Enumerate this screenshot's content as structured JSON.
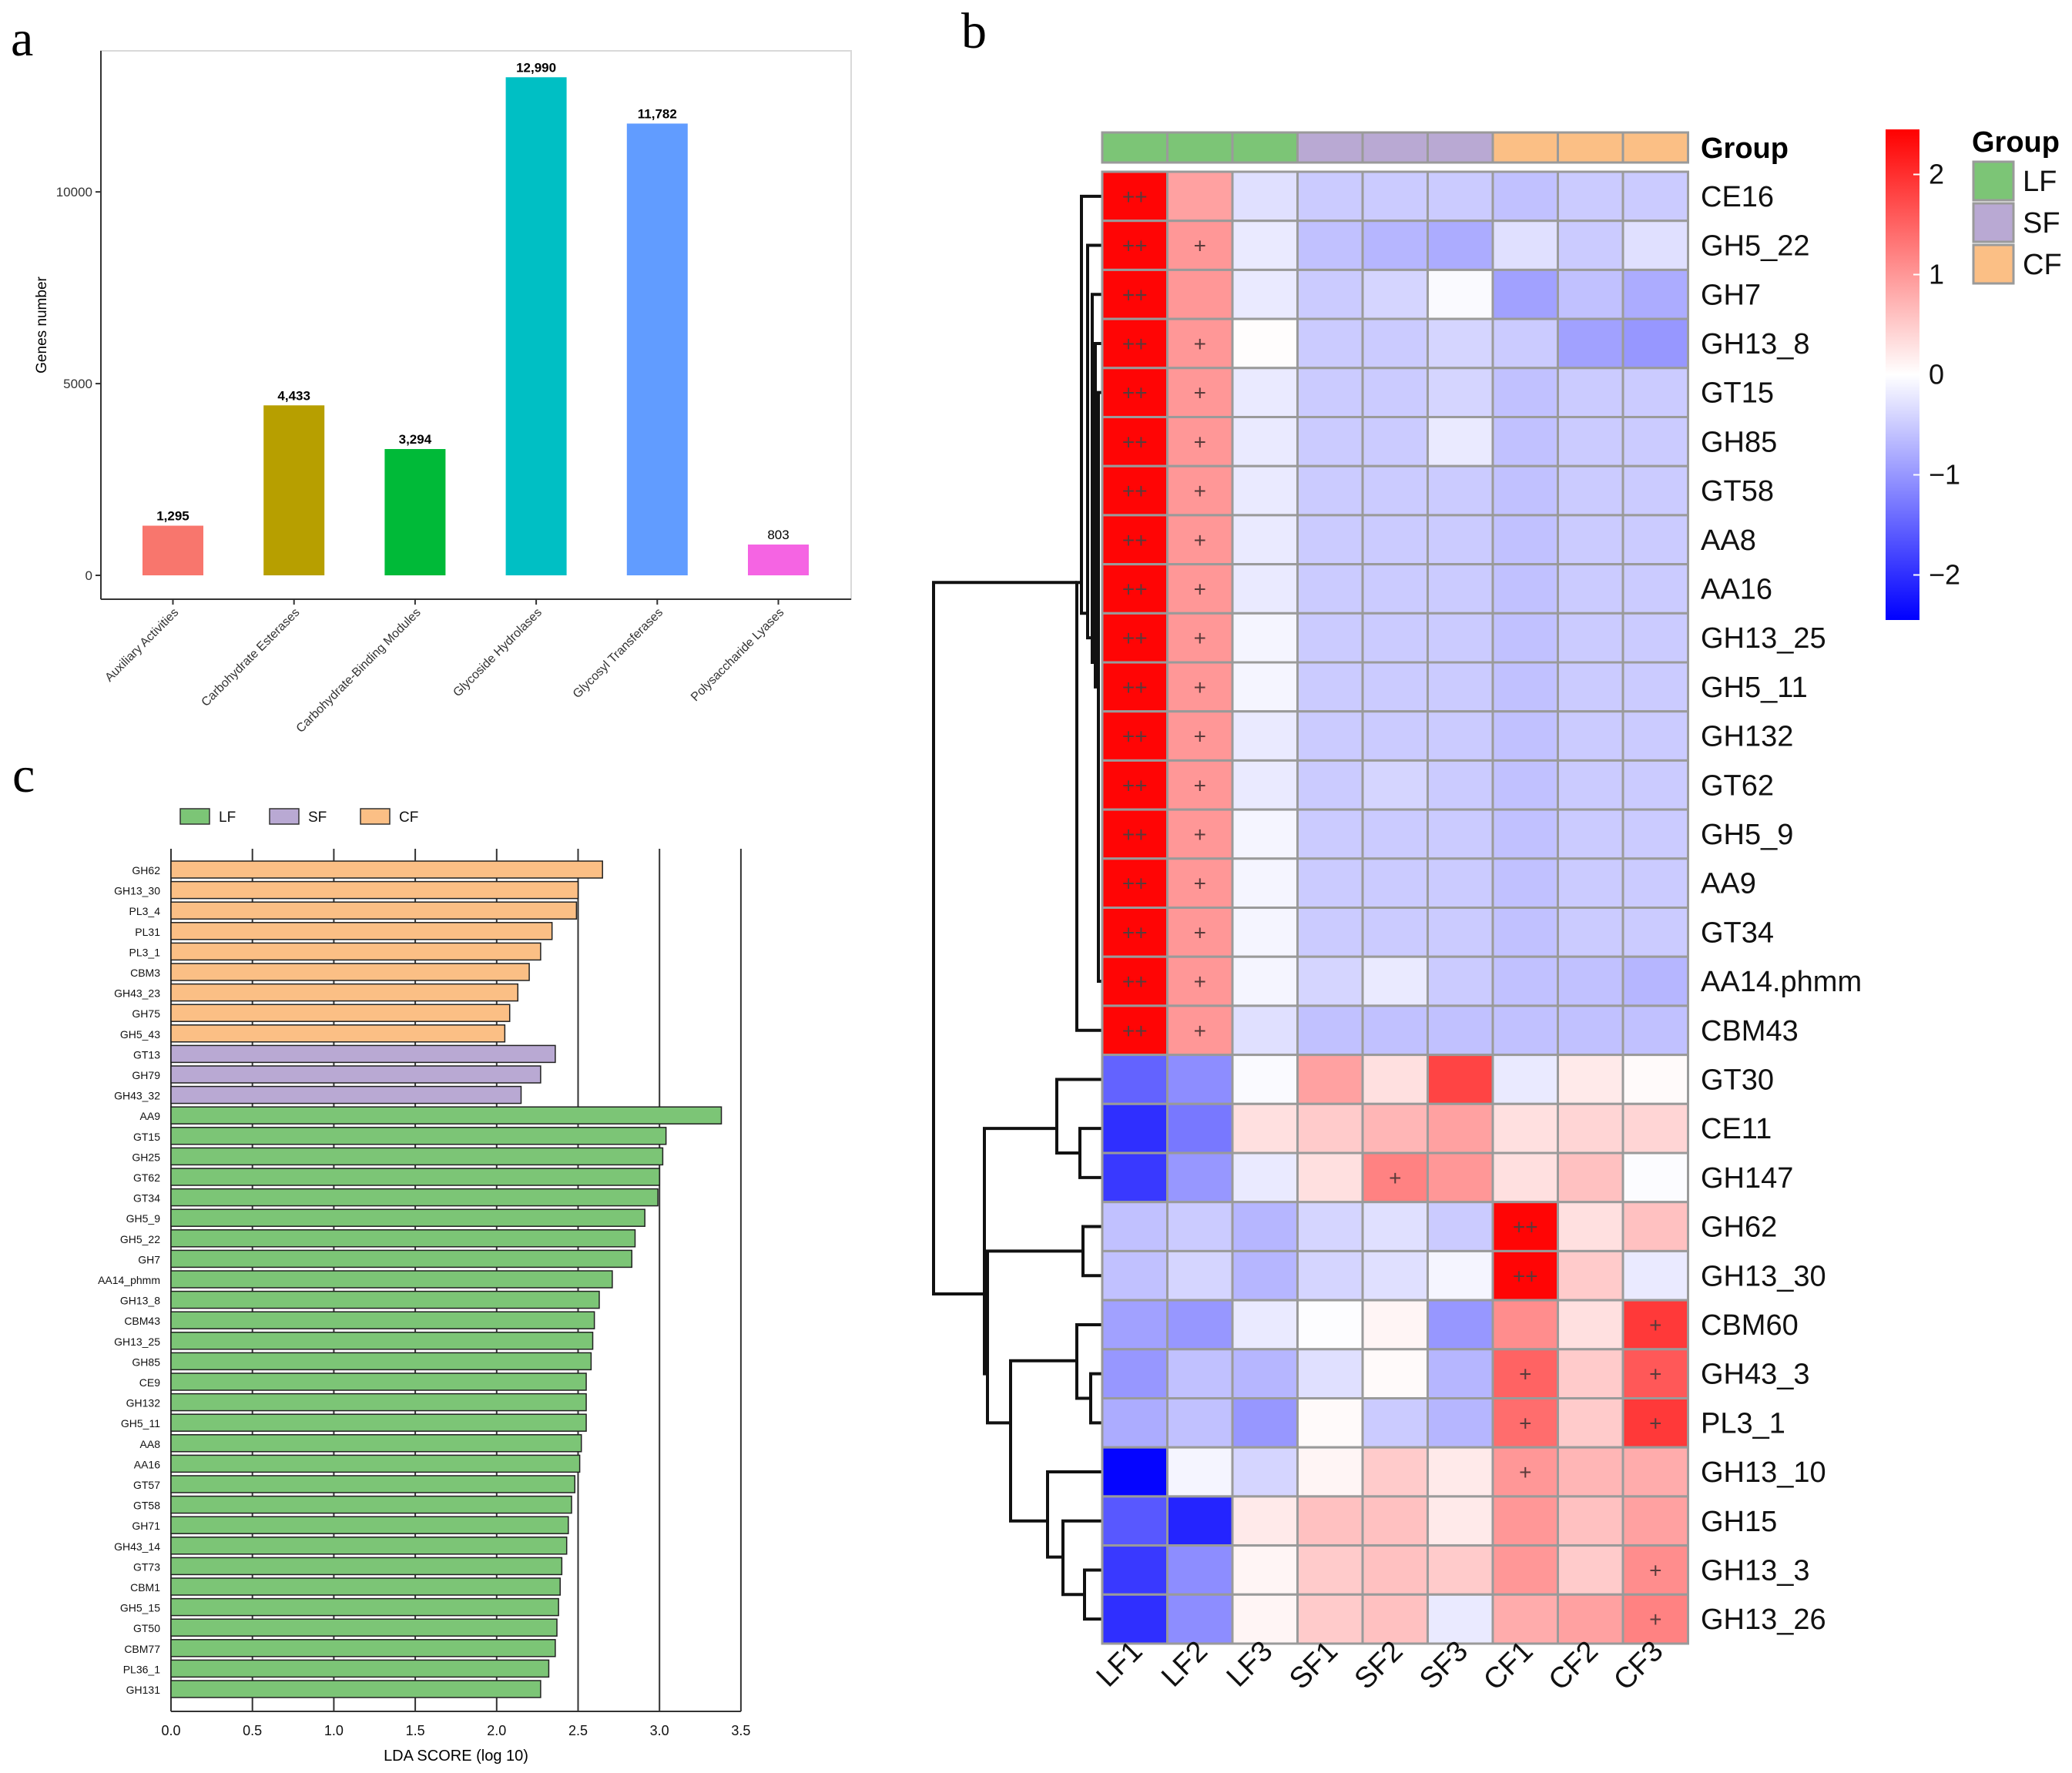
{
  "panel_labels": {
    "a": "a",
    "b": "b",
    "c": "c"
  },
  "colors": {
    "LF": "#7cc576",
    "SF": "#b9a9d3",
    "CF": "#fbbf85",
    "heat_low": "#0000ff",
    "heat_mid": "#ffffff",
    "heat_high": "#ff0000",
    "bars_a": [
      "#f8766d",
      "#b79f00",
      "#00ba38",
      "#00bfc4",
      "#619cff",
      "#f564e3"
    ]
  },
  "chart_data": [
    {
      "id": "a",
      "type": "bar",
      "ylabel": "Genes number",
      "xlabel": "",
      "ylim": [
        0,
        13500
      ],
      "yticks": [
        0,
        5000,
        10000
      ],
      "ytick_labels": [
        "0",
        "5000",
        "10000"
      ],
      "categories": [
        "Auxiliary Activities",
        "Carbohydrate Esterases",
        "Carbohydrate-Binding Modules",
        "Glycoside Hydrolases",
        "Glycosyl Transferases",
        "Polysaccharide Lyases"
      ],
      "values": [
        1295,
        4433,
        3294,
        12990,
        11782,
        803
      ],
      "value_labels": [
        "1,295",
        "4,433",
        "3,294",
        "12,990",
        "11,782",
        "803"
      ]
    },
    {
      "id": "b",
      "type": "heatmap",
      "columns": [
        "LF1",
        "LF2",
        "LF3",
        "SF1",
        "SF2",
        "SF3",
        "CF1",
        "CF2",
        "CF3"
      ],
      "column_groups": [
        "LF",
        "LF",
        "LF",
        "SF",
        "SF",
        "SF",
        "CF",
        "CF",
        "CF"
      ],
      "group_title": "Group",
      "legend_groups": [
        "LF",
        "SF",
        "CF"
      ],
      "scale_ticks": [
        2,
        1,
        0,
        -1,
        -2
      ],
      "scale_tick_labels": [
        "2",
        "1",
        "0",
        "−1",
        "−2"
      ],
      "scale_range": [
        -2.45,
        2.45
      ],
      "rows": [
        "CE16",
        "GH5_22",
        "GH7",
        "GH13_8",
        "GT15",
        "GH85",
        "GT58",
        "AA8",
        "AA16",
        "GH13_25",
        "GH5_11",
        "GH132",
        "GT62",
        "GH5_9",
        "AA9",
        "GT34",
        "AA14.phmm",
        "CBM43",
        "GT30",
        "CE11",
        "GH147",
        "GH62",
        "GH13_30",
        "CBM60",
        "GH43_3",
        "PL3_1",
        "GH13_10",
        "GH15",
        "GH13_3",
        "GH13_26"
      ],
      "values": [
        [
          2.4,
          0.9,
          -0.3,
          -0.5,
          -0.5,
          -0.5,
          -0.6,
          -0.5,
          -0.5
        ],
        [
          2.4,
          1.0,
          -0.2,
          -0.6,
          -0.7,
          -0.8,
          -0.3,
          -0.5,
          -0.3
        ],
        [
          2.4,
          1.0,
          -0.2,
          -0.5,
          -0.4,
          -0.05,
          -0.9,
          -0.6,
          -0.8
        ],
        [
          2.4,
          1.0,
          0.02,
          -0.5,
          -0.5,
          -0.4,
          -0.5,
          -0.9,
          -1.0
        ],
        [
          2.4,
          1.0,
          -0.2,
          -0.5,
          -0.5,
          -0.4,
          -0.6,
          -0.5,
          -0.5
        ],
        [
          2.4,
          1.0,
          -0.2,
          -0.5,
          -0.5,
          -0.2,
          -0.6,
          -0.5,
          -0.5
        ],
        [
          2.4,
          1.0,
          -0.2,
          -0.5,
          -0.5,
          -0.5,
          -0.6,
          -0.5,
          -0.5
        ],
        [
          2.4,
          1.0,
          -0.2,
          -0.5,
          -0.5,
          -0.5,
          -0.6,
          -0.5,
          -0.5
        ],
        [
          2.4,
          1.0,
          -0.2,
          -0.5,
          -0.5,
          -0.5,
          -0.6,
          -0.5,
          -0.5
        ],
        [
          2.4,
          1.0,
          -0.1,
          -0.5,
          -0.5,
          -0.5,
          -0.6,
          -0.5,
          -0.5
        ],
        [
          2.4,
          1.0,
          -0.1,
          -0.5,
          -0.5,
          -0.5,
          -0.6,
          -0.5,
          -0.5
        ],
        [
          2.4,
          1.0,
          -0.2,
          -0.5,
          -0.5,
          -0.5,
          -0.6,
          -0.5,
          -0.5
        ],
        [
          2.4,
          1.0,
          -0.2,
          -0.5,
          -0.4,
          -0.5,
          -0.6,
          -0.5,
          -0.5
        ],
        [
          2.4,
          1.0,
          -0.1,
          -0.5,
          -0.5,
          -0.5,
          -0.6,
          -0.5,
          -0.5
        ],
        [
          2.4,
          1.0,
          -0.1,
          -0.5,
          -0.5,
          -0.5,
          -0.6,
          -0.5,
          -0.5
        ],
        [
          2.4,
          1.0,
          -0.1,
          -0.5,
          -0.5,
          -0.5,
          -0.6,
          -0.5,
          -0.5
        ],
        [
          2.4,
          1.0,
          -0.1,
          -0.4,
          -0.2,
          -0.5,
          -0.6,
          -0.6,
          -0.7
        ],
        [
          2.4,
          1.0,
          -0.3,
          -0.6,
          -0.6,
          -0.6,
          -0.6,
          -0.6,
          -0.6
        ],
        [
          -1.5,
          -1.1,
          -0.05,
          0.9,
          0.3,
          1.8,
          -0.2,
          0.2,
          0.05
        ],
        [
          -2.0,
          -1.3,
          0.3,
          0.5,
          0.7,
          0.9,
          0.3,
          0.4,
          0.4
        ],
        [
          -1.9,
          -1.0,
          -0.2,
          0.3,
          1.2,
          1.0,
          0.3,
          0.6,
          -0.03
        ],
        [
          -0.6,
          -0.5,
          -0.7,
          -0.4,
          -0.3,
          -0.5,
          2.4,
          0.3,
          0.6
        ],
        [
          -0.6,
          -0.4,
          -0.7,
          -0.4,
          -0.3,
          -0.1,
          2.4,
          0.5,
          -0.2
        ],
        [
          -0.9,
          -1.0,
          -0.2,
          -0.02,
          0.1,
          -1.0,
          1.1,
          0.3,
          1.9
        ],
        [
          -1.0,
          -0.6,
          -0.7,
          -0.3,
          0.05,
          -0.7,
          1.5,
          0.5,
          1.6
        ],
        [
          -0.8,
          -0.6,
          -1.0,
          0.05,
          -0.5,
          -0.7,
          1.4,
          0.5,
          1.9
        ],
        [
          -2.4,
          -0.1,
          -0.4,
          0.1,
          0.5,
          0.2,
          1.0,
          0.7,
          0.8
        ],
        [
          -1.6,
          -2.1,
          0.2,
          0.6,
          0.6,
          0.2,
          1.0,
          0.6,
          0.9
        ],
        [
          -1.9,
          -1.1,
          0.1,
          0.5,
          0.6,
          0.5,
          1.0,
          0.5,
          1.1
        ],
        [
          -2.0,
          -1.1,
          0.1,
          0.5,
          0.6,
          -0.2,
          0.8,
          0.9,
          1.2
        ]
      ],
      "stars": [
        [
          "++",
          "",
          "",
          "",
          "",
          "",
          "",
          "",
          ""
        ],
        [
          "++",
          "+",
          "",
          "",
          "",
          "",
          "",
          "",
          ""
        ],
        [
          "++",
          "",
          "",
          "",
          "",
          "",
          "",
          "",
          ""
        ],
        [
          "++",
          "+",
          "",
          "",
          "",
          "",
          "",
          "",
          ""
        ],
        [
          "++",
          "+",
          "",
          "",
          "",
          "",
          "",
          "",
          ""
        ],
        [
          "++",
          "+",
          "",
          "",
          "",
          "",
          "",
          "",
          ""
        ],
        [
          "++",
          "+",
          "",
          "",
          "",
          "",
          "",
          "",
          ""
        ],
        [
          "++",
          "+",
          "",
          "",
          "",
          "",
          "",
          "",
          ""
        ],
        [
          "++",
          "+",
          "",
          "",
          "",
          "",
          "",
          "",
          ""
        ],
        [
          "++",
          "+",
          "",
          "",
          "",
          "",
          "",
          "",
          ""
        ],
        [
          "++",
          "+",
          "",
          "",
          "",
          "",
          "",
          "",
          ""
        ],
        [
          "++",
          "+",
          "",
          "",
          "",
          "",
          "",
          "",
          ""
        ],
        [
          "++",
          "+",
          "",
          "",
          "",
          "",
          "",
          "",
          ""
        ],
        [
          "++",
          "+",
          "",
          "",
          "",
          "",
          "",
          "",
          ""
        ],
        [
          "++",
          "+",
          "",
          "",
          "",
          "",
          "",
          "",
          ""
        ],
        [
          "++",
          "+",
          "",
          "",
          "",
          "",
          "",
          "",
          ""
        ],
        [
          "++",
          "+",
          "",
          "",
          "",
          "",
          "",
          "",
          ""
        ],
        [
          "++",
          "+",
          "",
          "",
          "",
          "",
          "",
          "",
          ""
        ],
        [
          "",
          "",
          "",
          "",
          "",
          "",
          "",
          "",
          ""
        ],
        [
          "",
          "",
          "",
          "",
          "",
          "",
          "",
          "",
          ""
        ],
        [
          "",
          "",
          "",
          "",
          "+",
          "",
          "",
          "",
          ""
        ],
        [
          "",
          "",
          "",
          "",
          "",
          "",
          "++",
          "",
          ""
        ],
        [
          "",
          "",
          "",
          "",
          "",
          "",
          "++",
          "",
          ""
        ],
        [
          "",
          "",
          "",
          "",
          "",
          "",
          "",
          "",
          "+"
        ],
        [
          "",
          "",
          "",
          "",
          "",
          "",
          "+",
          "",
          "+"
        ],
        [
          "",
          "",
          "",
          "",
          "",
          "",
          "+",
          "",
          "+"
        ],
        [
          "",
          "",
          "",
          "",
          "",
          "",
          "+",
          "",
          ""
        ],
        [
          "",
          "",
          "",
          "",
          "",
          "",
          "",
          "",
          ""
        ],
        [
          "",
          "",
          "",
          "",
          "",
          "",
          "",
          "",
          "+"
        ],
        [
          "",
          "",
          "",
          "",
          "",
          "",
          "",
          "",
          "+"
        ]
      ]
    },
    {
      "id": "c",
      "type": "bar",
      "orientation": "horizontal",
      "xlabel": "LDA SCORE (log 10)",
      "ylabel": "",
      "xlim": [
        0,
        3.5
      ],
      "xticks": [
        0.0,
        0.5,
        1.0,
        1.5,
        2.0,
        2.5,
        3.0,
        3.5
      ],
      "xtick_labels": [
        "0.0",
        "0.5",
        "1.0",
        "1.5",
        "2.0",
        "2.5",
        "3.0",
        "3.5"
      ],
      "legend": [
        "LF",
        "SF",
        "CF"
      ],
      "legend_position": "top-left",
      "categories": [
        "GH62",
        "GH13_30",
        "PL3_4",
        "PL31",
        "PL3_1",
        "CBM3",
        "GH43_23",
        "GH75",
        "GH5_43",
        "GT13",
        "GH79",
        "GH43_32",
        "AA9",
        "GT15",
        "GH25",
        "GT62",
        "GT34",
        "GH5_9",
        "GH5_22",
        "GH7",
        "AA14_phmm",
        "GH13_8",
        "CBM43",
        "GH13_25",
        "GH85",
        "CE9",
        "GH132",
        "GH5_11",
        "AA8",
        "AA16",
        "GT57",
        "GT58",
        "GH71",
        "GH43_14",
        "GT73",
        "CBM1",
        "GH5_15",
        "GT50",
        "CBM77",
        "PL36_1",
        "GH131"
      ],
      "groups": [
        "CF",
        "CF",
        "CF",
        "CF",
        "CF",
        "CF",
        "CF",
        "CF",
        "CF",
        "SF",
        "SF",
        "SF",
        "LF",
        "LF",
        "LF",
        "LF",
        "LF",
        "LF",
        "LF",
        "LF",
        "LF",
        "LF",
        "LF",
        "LF",
        "LF",
        "LF",
        "LF",
        "LF",
        "LF",
        "LF",
        "LF",
        "LF",
        "LF",
        "LF",
        "LF",
        "LF",
        "LF",
        "LF",
        "LF",
        "LF",
        "LF"
      ],
      "values": [
        2.65,
        2.5,
        2.49,
        2.34,
        2.27,
        2.2,
        2.13,
        2.08,
        2.05,
        2.36,
        2.27,
        2.15,
        3.38,
        3.04,
        3.02,
        3.0,
        2.99,
        2.91,
        2.85,
        2.83,
        2.71,
        2.63,
        2.6,
        2.59,
        2.58,
        2.55,
        2.55,
        2.55,
        2.52,
        2.51,
        2.48,
        2.46,
        2.44,
        2.43,
        2.4,
        2.39,
        2.38,
        2.37,
        2.36,
        2.32,
        2.27
      ]
    }
  ]
}
